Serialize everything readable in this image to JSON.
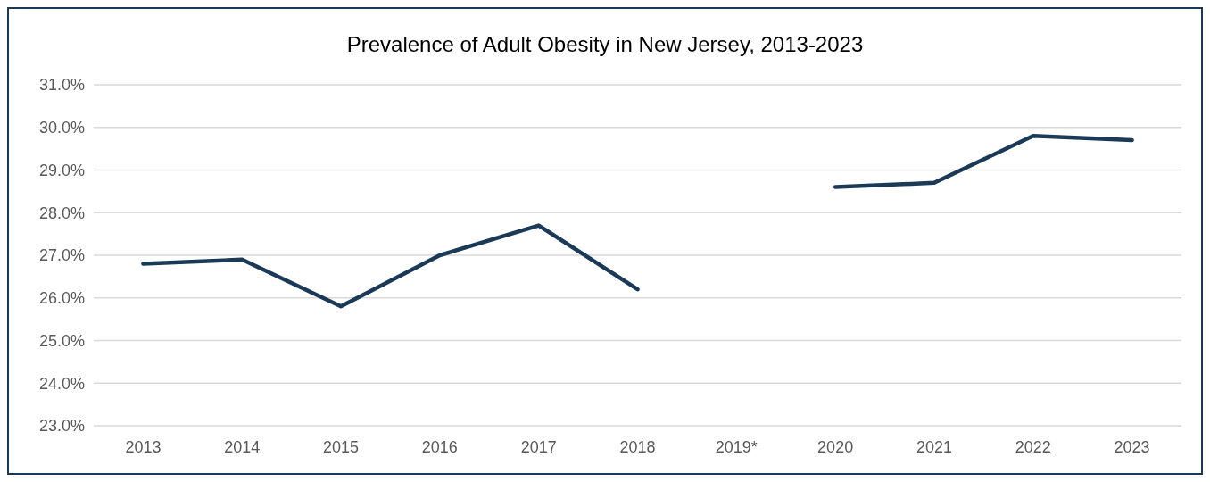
{
  "chart_data": {
    "type": "line",
    "title": "Prevalence of Adult Obesity in New Jersey, 2013-2023",
    "categories": [
      "2013",
      "2014",
      "2015",
      "2016",
      "2017",
      "2018",
      "2019*",
      "2020",
      "2021",
      "2022",
      "2023"
    ],
    "series": [
      {
        "color": "#1b3a57",
        "values": [
          26.8,
          26.9,
          25.8,
          27.0,
          27.7,
          26.2,
          null,
          28.6,
          28.7,
          29.8,
          29.7
        ]
      }
    ],
    "ylim": [
      23,
      31
    ],
    "yticks": [
      {
        "value": 23,
        "label": "23.0%"
      },
      {
        "value": 24,
        "label": "24.0%"
      },
      {
        "value": 25,
        "label": "25.0%"
      },
      {
        "value": 26,
        "label": "26.0%"
      },
      {
        "value": 27,
        "label": "27.0%"
      },
      {
        "value": 28,
        "label": "28.0%"
      },
      {
        "value": 29,
        "label": "29.0%"
      },
      {
        "value": 30,
        "label": "30.0%"
      },
      {
        "value": 31,
        "label": "31.0%"
      }
    ],
    "grid": "y",
    "marker": "none",
    "line_style": "solid"
  }
}
